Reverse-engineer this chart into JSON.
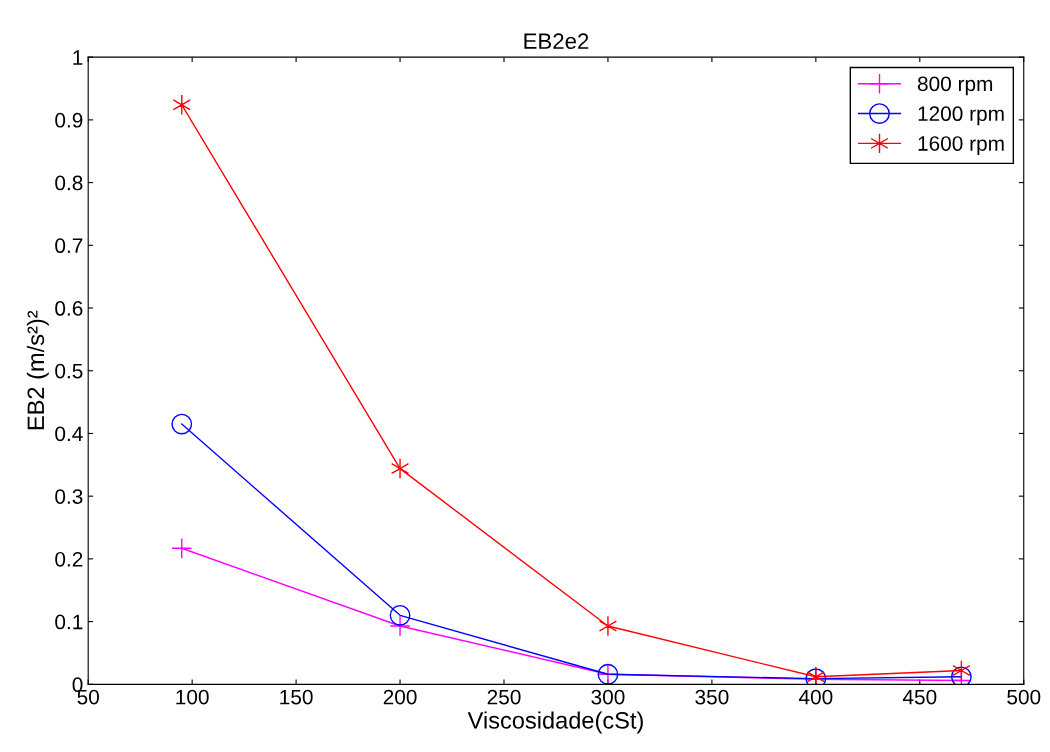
{
  "chart_data": {
    "type": "line",
    "title": "EB2e2",
    "xlabel": "Viscosidade(cSt)",
    "ylabel": "EB2 (m/s²)²",
    "x": [
      95,
      200,
      300,
      400,
      470
    ],
    "series": [
      {
        "name": "800 rpm",
        "color": "#ff00ff",
        "marker": "plus",
        "values": [
          0.217,
          0.093,
          0.016,
          0.008,
          0.006
        ]
      },
      {
        "name": "1200 rpm",
        "color": "#0000ff",
        "marker": "circle",
        "values": [
          0.415,
          0.11,
          0.016,
          0.009,
          0.012
        ]
      },
      {
        "name": "1600 rpm",
        "color": "#ff0000",
        "marker": "cross",
        "values": [
          0.924,
          0.344,
          0.093,
          0.012,
          0.022
        ]
      }
    ],
    "xlim": [
      50,
      500
    ],
    "xticks": [
      50,
      100,
      150,
      200,
      250,
      300,
      350,
      400,
      450,
      500
    ],
    "ylim": [
      0,
      1
    ],
    "yticks": [
      0,
      0.1,
      0.2,
      0.3,
      0.4,
      0.5,
      0.6,
      0.7,
      0.8,
      0.9,
      1
    ],
    "grid": false,
    "legend": "top right",
    "line_style": "solid"
  }
}
